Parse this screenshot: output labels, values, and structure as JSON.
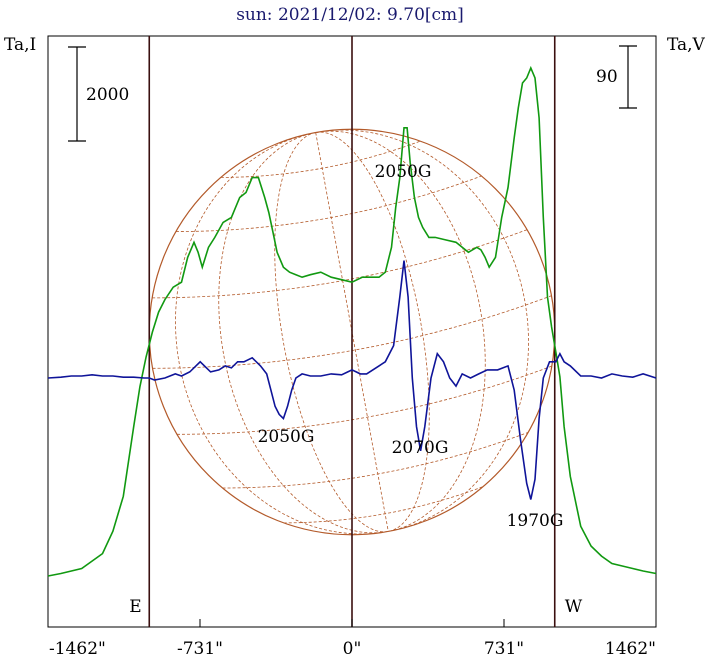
{
  "chart_data": {
    "type": "line",
    "title": "sun: 2021/12/02: 9.70[cm]",
    "left_axis_label": "Ta,I",
    "right_axis_label": "Ta,V",
    "x_ticks": [
      {
        "value": -1462,
        "label": "-1462\""
      },
      {
        "value": -731,
        "label": "-731\""
      },
      {
        "value": 0,
        "label": "0\""
      },
      {
        "value": 731,
        "label": "731\""
      },
      {
        "value": 1462,
        "label": "1462\""
      }
    ],
    "x_range": [
      -1462,
      1462
    ],
    "scale_bar_left": "2000",
    "scale_bar_right": "90",
    "limb_markers": [
      {
        "label": "E",
        "x": -975
      },
      {
        "label": "W",
        "x": 975
      }
    ],
    "center_marker_x": 0,
    "disk_radius_arcsec": 975,
    "annotations": [
      {
        "text": "2050G",
        "series": "intensity",
        "x": 255
      },
      {
        "text": "2050G",
        "series": "circular_polarization",
        "x": -330
      },
      {
        "text": "2070G",
        "series": "circular_polarization",
        "x": 330
      },
      {
        "text": "1970G",
        "series": "circular_polarization",
        "x": 880
      }
    ],
    "series": [
      {
        "key": "intensity",
        "color": "#119911",
        "x": [
          -1462,
          -1400,
          -1300,
          -1200,
          -1150,
          -1100,
          -1050,
          -1020,
          -990,
          -960,
          -930,
          -900,
          -860,
          -820,
          -790,
          -760,
          -740,
          -720,
          -690,
          -660,
          -620,
          -580,
          -540,
          -510,
          -480,
          -450,
          -420,
          -400,
          -380,
          -360,
          -330,
          -300,
          -270,
          -240,
          -200,
          -150,
          -100,
          -50,
          0,
          50,
          100,
          130,
          160,
          190,
          210,
          230,
          250,
          265,
          280,
          300,
          320,
          340,
          370,
          400,
          450,
          500,
          560,
          600,
          620,
          640,
          660,
          690,
          720,
          750,
          780,
          800,
          820,
          840,
          860,
          880,
          900,
          920,
          940,
          960,
          980,
          1000,
          1020,
          1050,
          1100,
          1150,
          1200,
          1250,
          1300,
          1350,
          1400,
          1462
        ],
        "y": [
          0,
          5,
          15,
          45,
          90,
          160,
          300,
          380,
          440,
          490,
          530,
          555,
          580,
          590,
          640,
          670,
          650,
          620,
          660,
          680,
          710,
          720,
          760,
          770,
          800,
          800,
          760,
          730,
          690,
          650,
          620,
          610,
          605,
          600,
          605,
          610,
          600,
          595,
          590,
          600,
          600,
          600,
          610,
          660,
          740,
          800,
          900,
          900,
          830,
          760,
          720,
          700,
          680,
          680,
          675,
          670,
          650,
          660,
          655,
          640,
          620,
          640,
          720,
          780,
          880,
          940,
          990,
          1000,
          1020,
          1000,
          920,
          720,
          560,
          500,
          450,
          400,
          300,
          200,
          100,
          60,
          40,
          25,
          20,
          15,
          10,
          5
        ]
      },
      {
        "key": "circular_polarization",
        "color": "#0f1499",
        "x": [
          -1462,
          -1400,
          -1350,
          -1300,
          -1250,
          -1200,
          -1150,
          -1100,
          -1050,
          -1000,
          -975,
          -950,
          -900,
          -850,
          -820,
          -780,
          -730,
          -680,
          -640,
          -610,
          -580,
          -550,
          -520,
          -480,
          -440,
          -410,
          -390,
          -370,
          -350,
          -330,
          -310,
          -290,
          -270,
          -240,
          -200,
          -150,
          -100,
          -50,
          -20,
          0,
          20,
          40,
          70,
          100,
          130,
          160,
          200,
          230,
          250,
          270,
          290,
          310,
          330,
          350,
          380,
          410,
          440,
          470,
          500,
          530,
          570,
          610,
          650,
          700,
          750,
          780,
          810,
          840,
          860,
          880,
          900,
          920,
          950,
          980,
          1000,
          1020,
          1050,
          1100,
          1150,
          1200,
          1250,
          1300,
          1350,
          1400,
          1462
        ],
        "y": [
          0,
          2,
          5,
          5,
          8,
          5,
          5,
          2,
          2,
          0,
          0,
          -5,
          0,
          10,
          5,
          15,
          40,
          15,
          20,
          30,
          25,
          40,
          40,
          50,
          30,
          10,
          -30,
          -70,
          -90,
          -100,
          -70,
          -30,
          0,
          10,
          5,
          5,
          10,
          8,
          15,
          20,
          15,
          10,
          10,
          20,
          30,
          40,
          80,
          200,
          290,
          200,
          0,
          -120,
          -180,
          -120,
          0,
          60,
          40,
          0,
          -20,
          10,
          0,
          10,
          20,
          20,
          30,
          -30,
          -150,
          -260,
          -300,
          -250,
          -100,
          0,
          40,
          40,
          60,
          40,
          30,
          5,
          5,
          0,
          10,
          5,
          2,
          10,
          0
        ]
      }
    ]
  }
}
